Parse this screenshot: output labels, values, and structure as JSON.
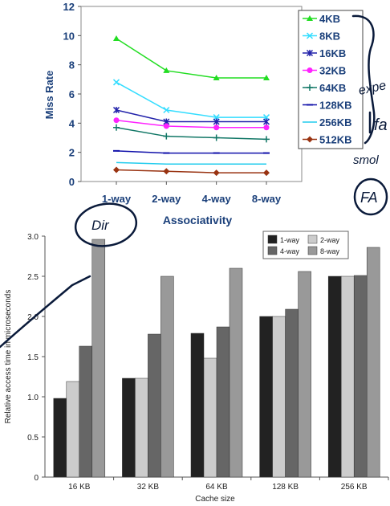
{
  "chart_data": [
    {
      "type": "line",
      "title": "",
      "xlabel": "Associativity",
      "ylabel": "Miss Rate",
      "categories": [
        "1-way",
        "2-way",
        "4-way",
        "8-way"
      ],
      "y_ticks": [
        "0",
        "2",
        "4",
        "6",
        "8",
        "10",
        "12"
      ],
      "ylim": [
        0,
        12
      ],
      "grid": false,
      "legend_position": "right",
      "series": [
        {
          "name": "4KB",
          "values": [
            9.8,
            7.6,
            7.1,
            7.1
          ],
          "color": "#22dd22",
          "marker": "triangle"
        },
        {
          "name": "8KB",
          "values": [
            6.8,
            4.9,
            4.4,
            4.4
          ],
          "color": "#33ddff",
          "marker": "x"
        },
        {
          "name": "16KB",
          "values": [
            4.9,
            4.1,
            4.1,
            4.1
          ],
          "color": "#2222aa",
          "marker": "star"
        },
        {
          "name": "32KB",
          "values": [
            4.2,
            3.8,
            3.7,
            3.7
          ],
          "color": "#ff22ff",
          "marker": "circle"
        },
        {
          "name": "64KB",
          "values": [
            3.7,
            3.1,
            3.0,
            2.9
          ],
          "color": "#117766",
          "marker": "plus"
        },
        {
          "name": "128KB",
          "values": [
            2.1,
            1.95,
            1.95,
            1.95
          ],
          "color": "#1111aa",
          "marker": "dash"
        },
        {
          "name": "256KB",
          "values": [
            1.3,
            1.2,
            1.2,
            1.2
          ],
          "color": "#22ccee",
          "marker": "none"
        },
        {
          "name": "512KB",
          "values": [
            0.8,
            0.7,
            0.6,
            0.6
          ],
          "color": "#993311",
          "marker": "diamond"
        }
      ]
    },
    {
      "type": "bar",
      "title": "",
      "xlabel": "Cache size",
      "ylabel": "Relative access time in microseconds",
      "categories": [
        "16 KB",
        "32 KB",
        "64 KB",
        "128 KB",
        "256 KB"
      ],
      "y_ticks": [
        "0",
        "0.5",
        "1.0",
        "1.5",
        "2.0",
        "2.5",
        "3.0"
      ],
      "ylim": [
        0,
        3.0
      ],
      "grid": false,
      "legend_position": "top-right",
      "series": [
        {
          "name": "1-way",
          "values": [
            0.98,
            1.23,
            1.79,
            2.0,
            2.5
          ],
          "color": "#222222"
        },
        {
          "name": "2-way",
          "values": [
            1.19,
            1.23,
            1.48,
            2.0,
            2.5
          ],
          "color": "#cccccc"
        },
        {
          "name": "4-way",
          "values": [
            1.63,
            1.78,
            1.87,
            2.09,
            2.51
          ],
          "color": "#666666"
        },
        {
          "name": "8-way",
          "values": [
            2.96,
            2.5,
            2.6,
            2.56,
            2.86
          ],
          "color": "#999999"
        }
      ]
    }
  ],
  "annotations": [
    {
      "name": "dir-note",
      "text": "Dir"
    },
    {
      "name": "fa-note",
      "text": "FA"
    },
    {
      "name": "exp-note",
      "text": "expe"
    },
    {
      "name": "fa-side-note",
      "text": "fa"
    },
    {
      "name": "small-note",
      "text": "smol"
    }
  ]
}
